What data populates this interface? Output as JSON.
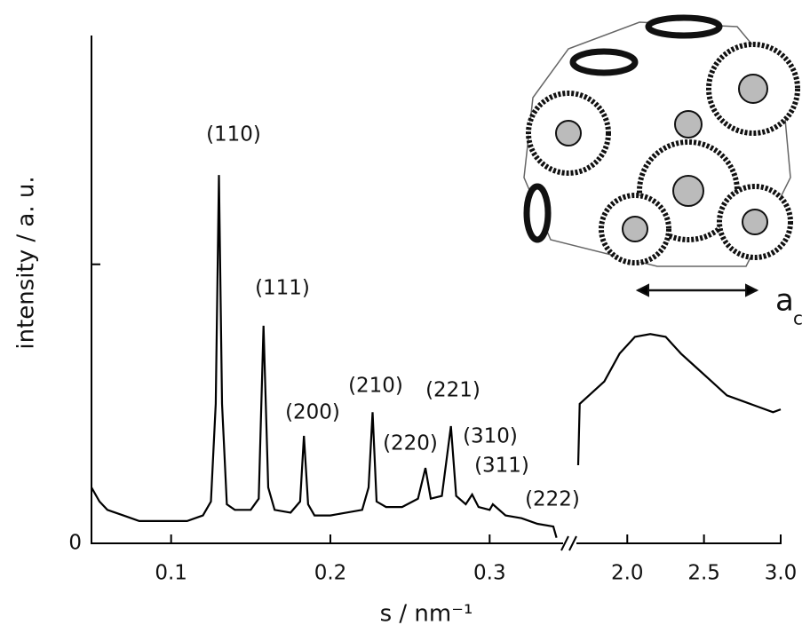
{
  "chart_data": {
    "type": "line",
    "y_label": "intensity / a. u.",
    "x_label": "s / nm⁻¹",
    "xlim": [
      0.05,
      0.345
    ],
    "xticks": [
      0.1,
      0.2,
      0.3
    ],
    "x2lim": [
      1.68,
      3.0
    ],
    "x2ticks": [
      {
        "value": 2,
        "label": "2.0"
      },
      2.5,
      {
        "value": 3,
        "label": "3.0"
      }
    ],
    "ylim": [
      0,
      1.82
    ],
    "yticks": [
      0
    ],
    "yticks_unlabeled": [
      1
    ],
    "series": [
      {
        "color": "#000000",
        "x": [
          0.05,
          0.055,
          0.06,
          0.07,
          0.08,
          0.09,
          0.1,
          0.11,
          0.12,
          0.125,
          0.128,
          0.13,
          0.132,
          0.135,
          0.14,
          0.15,
          0.155,
          0.158,
          0.161,
          0.165,
          0.175,
          0.181,
          0.1834,
          0.186,
          0.19,
          0.2,
          0.21,
          0.22,
          0.224,
          0.2265,
          0.229,
          0.235,
          0.245,
          0.255,
          0.2597,
          0.263,
          0.27,
          0.2757,
          0.279,
          0.285,
          0.289,
          0.293,
          0.3,
          0.302,
          0.31,
          0.32,
          0.33,
          0.34,
          0.342
        ],
        "values": [
          0.2,
          0.15,
          0.12,
          0.1,
          0.08,
          0.08,
          0.08,
          0.08,
          0.1,
          0.15,
          0.5,
          1.32,
          0.5,
          0.14,
          0.12,
          0.12,
          0.16,
          0.78,
          0.2,
          0.12,
          0.11,
          0.15,
          0.385,
          0.14,
          0.1,
          0.1,
          0.11,
          0.12,
          0.2,
          0.47,
          0.15,
          0.13,
          0.13,
          0.16,
          0.27,
          0.16,
          0.17,
          0.42,
          0.17,
          0.14,
          0.175,
          0.13,
          0.12,
          0.14,
          0.1,
          0.09,
          0.07,
          0.06,
          0.02
        ]
      },
      {
        "color": "#000000",
        "axis": "x2",
        "x": [
          1.68,
          1.69,
          1.75,
          1.85,
          1.95,
          2.05,
          2.15,
          2.25,
          2.35,
          2.45,
          2.55,
          2.65,
          2.75,
          2.85,
          2.95,
          3.0
        ],
        "values": [
          0.28,
          0.5,
          0.53,
          0.58,
          0.68,
          0.74,
          0.75,
          0.74,
          0.68,
          0.63,
          0.58,
          0.53,
          0.51,
          0.49,
          0.47,
          0.48
        ]
      }
    ],
    "annotations": [
      {
        "text": "(110)"
      },
      {
        "text": "(111)"
      },
      {
        "text": "(200)"
      },
      {
        "text": "(210)"
      },
      {
        "text": "(220)"
      },
      {
        "text": "(221)"
      },
      {
        "text": "(310)"
      },
      {
        "text": "(311)"
      },
      {
        "text": "(222)"
      }
    ],
    "inset_label": "a",
    "inset_label_subscript": "c"
  }
}
